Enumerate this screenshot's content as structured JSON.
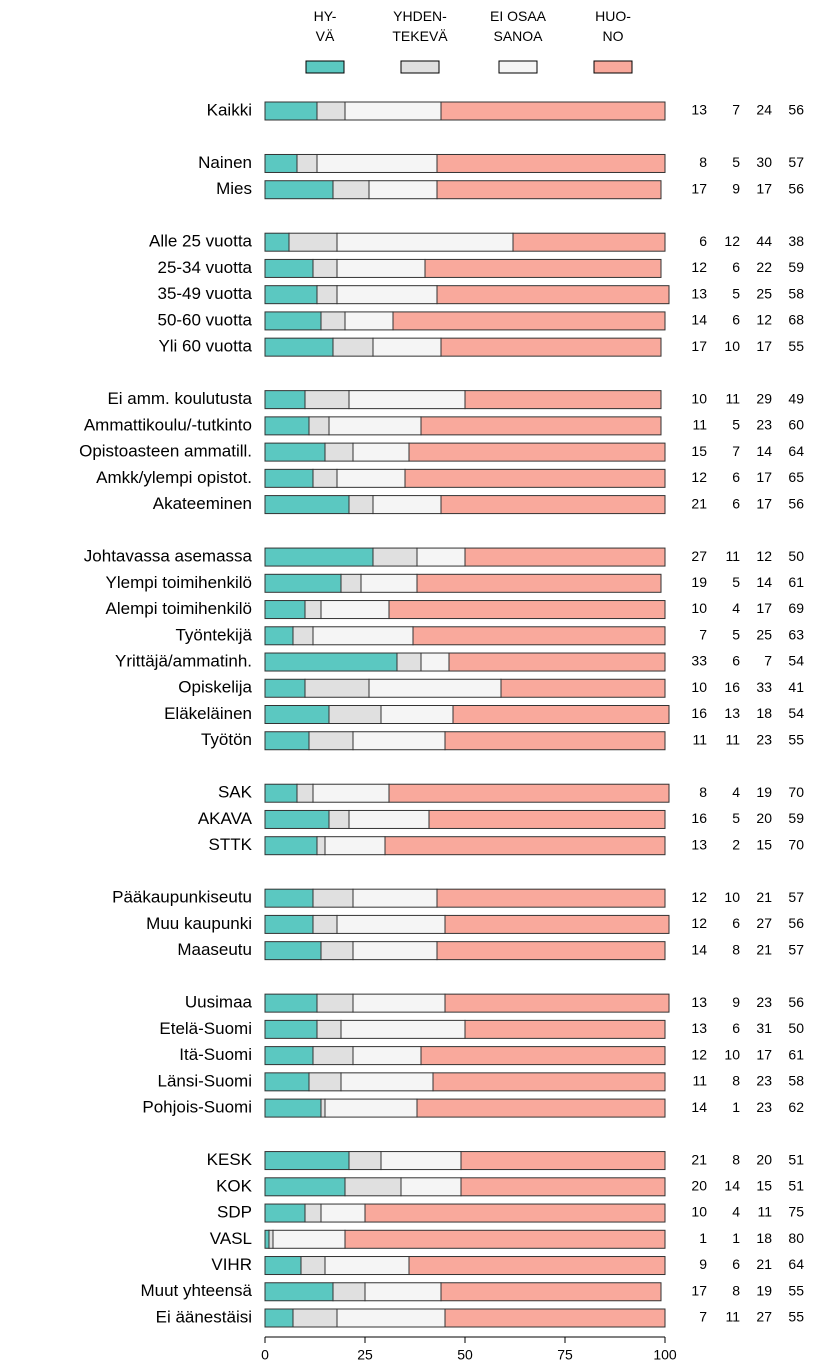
{
  "chart_data": {
    "type": "stacked_barh",
    "categories": [
      "Kaikki",
      null,
      "Nainen",
      "Mies",
      null,
      "Alle 25 vuotta",
      "25-34 vuotta",
      "35-49 vuotta",
      "50-60 vuotta",
      "Yli 60 vuotta",
      null,
      "Ei amm. koulutusta",
      "Ammattikoulu/-tutkinto",
      "Opistoasteen ammatill.",
      "Amkk/ylempi opistot.",
      "Akateeminen",
      null,
      "Johtavassa asemassa",
      "Ylempi toimihenkilö",
      "Alempi toimihenkilö",
      "Työntekijä",
      "Yrittäjä/ammatinh.",
      "Opiskelija",
      "Eläkeläinen",
      "Työtön",
      null,
      "SAK",
      "AKAVA",
      "STTK",
      null,
      "Pääkaupunkiseutu",
      "Muu kaupunki",
      "Maaseutu",
      null,
      "Uusimaa",
      "Etelä-Suomi",
      "Itä-Suomi",
      "Länsi-Suomi",
      "Pohjois-Suomi",
      null,
      "KESK",
      "KOK",
      "SDP",
      "VASL",
      "VIHR",
      "Muut yhteensä",
      "Ei äänestäisi"
    ],
    "series": [
      {
        "name": "HY-\nVÄ",
        "color": "#5bc8c1",
        "values": [
          13,
          null,
          8,
          17,
          null,
          6,
          12,
          13,
          14,
          17,
          null,
          10,
          11,
          15,
          12,
          21,
          null,
          27,
          19,
          10,
          7,
          33,
          10,
          16,
          11,
          null,
          8,
          16,
          13,
          null,
          12,
          12,
          14,
          null,
          13,
          13,
          12,
          11,
          14,
          null,
          21,
          20,
          10,
          1,
          9,
          17,
          7
        ]
      },
      {
        "name": "YHDEN-\nTEKEVÄ",
        "color": "#e0e0e0",
        "values": [
          7,
          null,
          5,
          9,
          null,
          12,
          6,
          5,
          6,
          10,
          null,
          11,
          5,
          7,
          6,
          6,
          null,
          11,
          5,
          4,
          5,
          6,
          16,
          13,
          11,
          null,
          4,
          5,
          2,
          null,
          10,
          6,
          8,
          null,
          9,
          6,
          10,
          8,
          1,
          null,
          8,
          14,
          4,
          1,
          6,
          8,
          11
        ]
      },
      {
        "name": "EI OSAA\nSANOA",
        "color": "#f5f5f5",
        "values": [
          24,
          null,
          30,
          17,
          null,
          44,
          22,
          25,
          12,
          17,
          null,
          29,
          23,
          14,
          17,
          17,
          null,
          12,
          14,
          17,
          25,
          7,
          33,
          18,
          23,
          null,
          19,
          20,
          15,
          null,
          21,
          27,
          21,
          null,
          23,
          31,
          17,
          23,
          23,
          null,
          20,
          15,
          11,
          18,
          21,
          19,
          27
        ]
      },
      {
        "name": "HUO-\nNO",
        "color": "#f9a99c",
        "values": [
          56,
          null,
          57,
          56,
          null,
          38,
          59,
          58,
          68,
          55,
          null,
          49,
          60,
          64,
          65,
          56,
          null,
          50,
          61,
          69,
          63,
          54,
          41,
          54,
          55,
          null,
          70,
          59,
          70,
          null,
          57,
          56,
          57,
          null,
          56,
          50,
          61,
          58,
          62,
          null,
          51,
          51,
          75,
          80,
          64,
          55,
          55
        ]
      }
    ],
    "xlim": [
      0,
      100
    ],
    "xticks": [
      0,
      25,
      50,
      75,
      100
    ]
  }
}
